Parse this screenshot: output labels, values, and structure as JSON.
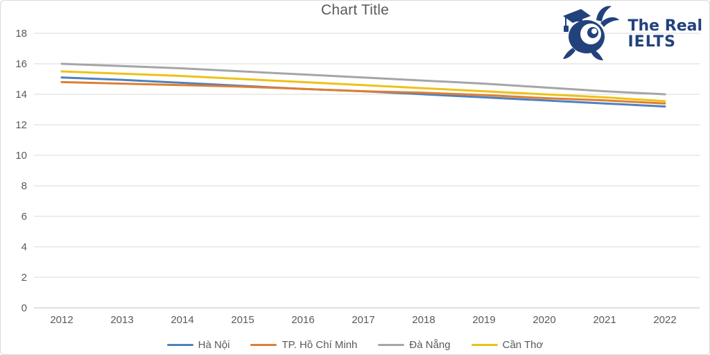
{
  "title": "Chart Title",
  "logo": {
    "line1": "The Real",
    "line2": "IELTS",
    "color": "#22427C"
  },
  "chart_data": {
    "type": "line",
    "title": "Chart Title",
    "x": [
      2012,
      2013,
      2014,
      2015,
      2016,
      2017,
      2018,
      2019,
      2020,
      2021,
      2022
    ],
    "series": [
      {
        "name": "Hà Nội",
        "color": "#4E81BD",
        "values": [
          15.1,
          14.95,
          14.75,
          14.55,
          14.35,
          14.2,
          14.0,
          13.8,
          13.6,
          13.4,
          13.2
        ]
      },
      {
        "name": "TP. Hồ Chí Minh",
        "color": "#DE7E32",
        "values": [
          14.8,
          14.7,
          14.6,
          14.5,
          14.35,
          14.2,
          14.1,
          13.95,
          13.75,
          13.6,
          13.4
        ]
      },
      {
        "name": "Đà Nẵng",
        "color": "#A5A5A5",
        "values": [
          16.0,
          15.85,
          15.7,
          15.5,
          15.3,
          15.1,
          14.9,
          14.7,
          14.45,
          14.2,
          14.0
        ]
      },
      {
        "name": "Cần Thơ",
        "color": "#EEC117",
        "values": [
          15.5,
          15.35,
          15.2,
          15.0,
          14.8,
          14.6,
          14.4,
          14.2,
          14.0,
          13.8,
          13.55
        ]
      }
    ],
    "ylim": [
      0,
      18
    ],
    "ytick_step": 2,
    "grid": true,
    "legend_position": "bottom",
    "colors": {
      "grid": "#d9d9d9",
      "axis_line": "#bfbfbf",
      "tick_text": "#595959",
      "title_text": "#595959"
    }
  }
}
